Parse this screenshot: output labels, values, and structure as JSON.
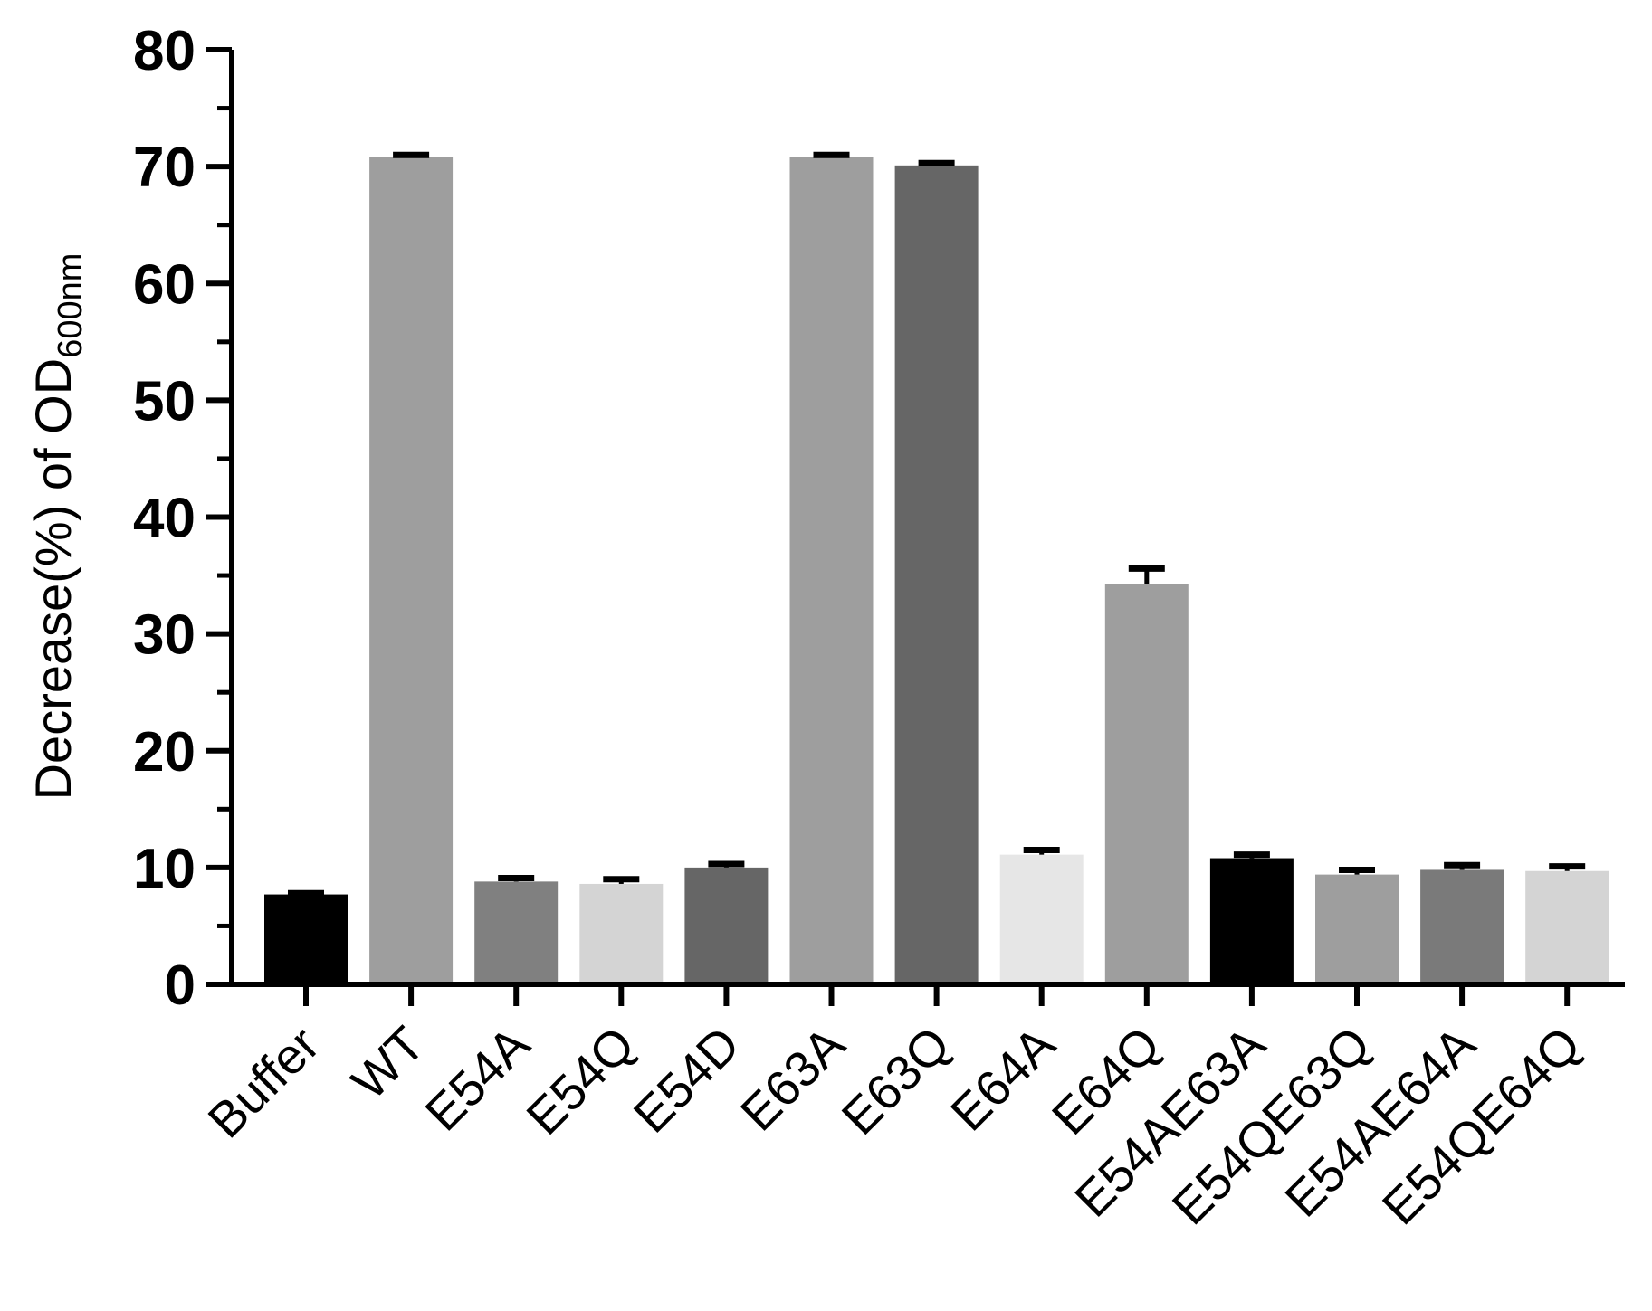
{
  "chart_data": {
    "type": "bar",
    "title": "",
    "xlabel": "",
    "ylabel": {
      "main": "Decrease(%) of OD",
      "subscript": "600nm"
    },
    "ylim": [
      0,
      80
    ],
    "yticks": [
      0,
      10,
      20,
      30,
      40,
      50,
      60,
      70,
      80
    ],
    "categories": [
      "Buffer",
      "WT",
      "E54A",
      "E54Q",
      "E54D",
      "E63A",
      "E63Q",
      "E64A",
      "E64Q",
      "E54AE63A",
      "E54QE63Q",
      "E54AE64A",
      "E54QE64Q"
    ],
    "values": [
      7.7,
      70.8,
      8.8,
      8.6,
      10.0,
      70.8,
      70.1,
      11.1,
      34.3,
      10.8,
      9.4,
      9.8,
      9.7
    ],
    "errors": [
      0.1,
      0.2,
      0.3,
      0.4,
      0.3,
      0.2,
      0.2,
      0.4,
      1.3,
      0.3,
      0.4,
      0.4,
      0.4
    ],
    "colors": [
      "#000000",
      "#9e9e9e",
      "#808080",
      "#d4d4d4",
      "#666666",
      "#9e9e9e",
      "#666666",
      "#e6e6e6",
      "#9e9e9e",
      "#000000",
      "#9e9e9e",
      "#7a7a7a",
      "#d4d4d4"
    ],
    "grid": false,
    "legend": "none"
  }
}
